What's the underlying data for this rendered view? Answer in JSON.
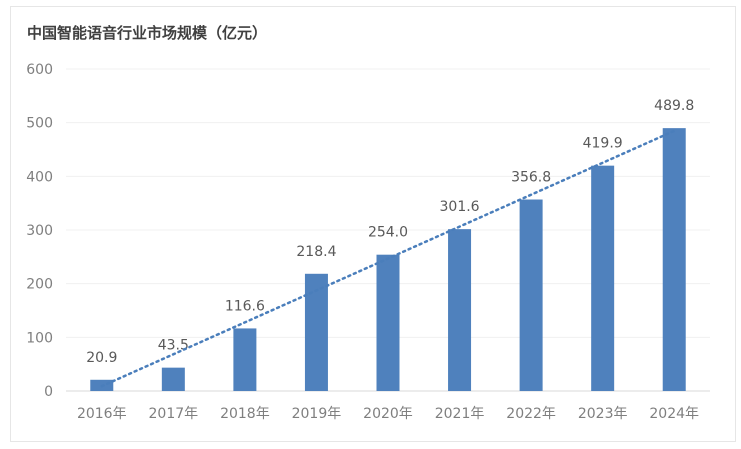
{
  "chart_data": {
    "type": "bar",
    "title": "中国智能语音行业市场规模（亿元）",
    "categories": [
      "2016年",
      "2017年",
      "2018年",
      "2019年",
      "2020年",
      "2021年",
      "2022年",
      "2023年",
      "2024年"
    ],
    "values": [
      20.9,
      43.5,
      116.6,
      218.4,
      254.0,
      301.6,
      356.8,
      419.9,
      489.8
    ],
    "data_labels": [
      "20.9",
      "43.5",
      "116.6",
      "218.4",
      "254.0",
      "301.6",
      "356.8",
      "419.9",
      "489.8"
    ],
    "ylim": [
      0,
      600
    ],
    "yticks": [
      "0",
      "100",
      "200",
      "300",
      "400",
      "500",
      "600"
    ],
    "trendline": "linear, dotted",
    "grid": true,
    "colors": {
      "bar": "#4f81bd",
      "trend": "#4a7ebb",
      "grid": "#f0f0f0"
    }
  }
}
